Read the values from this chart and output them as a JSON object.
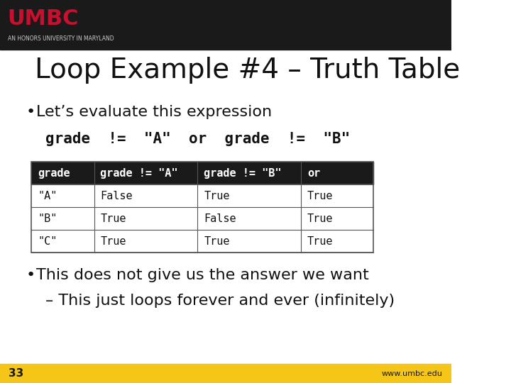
{
  "title": "Loop Example #4 – Truth Table",
  "bullet1": "Let’s evaluate this expression",
  "code_expr": "grade  !=  \"A\"  or  grade  !=  \"B\"",
  "table_headers": [
    "grade",
    "grade != \"A\"",
    "grade != \"B\"",
    "or"
  ],
  "table_rows": [
    [
      "\"A\"",
      "False",
      "True",
      "True"
    ],
    [
      "\"B\"",
      "True",
      "False",
      "True"
    ],
    [
      "\"C\"",
      "True",
      "True",
      "True"
    ]
  ],
  "bullet2": "This does not give us the answer we want",
  "sub_bullet": "– This just loops forever and ever (infinitely)",
  "header_bg": "#1a1a1a",
  "header_fg": "#ffffff",
  "row_bg": "#ffffff",
  "row_border": "#555555",
  "slide_bg": "#ffffff",
  "top_bar_bg": "#1a1a1a",
  "umbc_red": "#c8102e",
  "bottom_bar_bg": "#f5c518",
  "bottom_left_text": "33",
  "bottom_right_text": "www.umbc.edu",
  "top_bar_height": 0.13,
  "bottom_bar_height": 0.05
}
